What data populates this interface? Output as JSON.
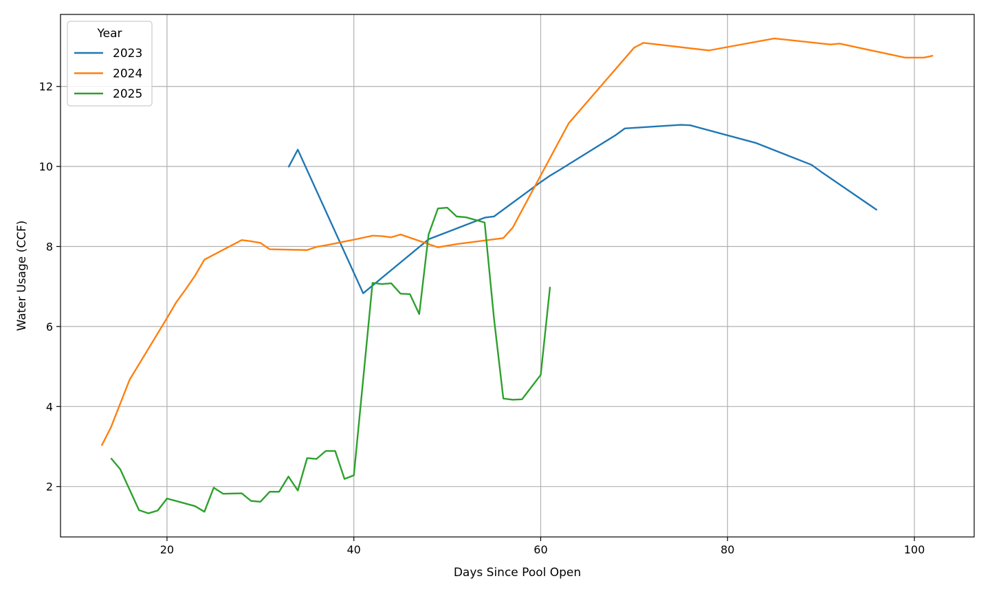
{
  "chart_data": {
    "type": "line",
    "xlabel": "Days Since Pool Open",
    "ylabel": "Water Usage (CCF)",
    "xlim": [
      8.6,
      106.4
    ],
    "ylim": [
      0.74,
      13.8
    ],
    "xticks": [
      20,
      40,
      60,
      80,
      100
    ],
    "yticks": [
      2,
      4,
      6,
      8,
      10,
      12
    ],
    "grid": true,
    "legend": {
      "title": "Year",
      "placement": "top-left"
    },
    "colors": {
      "2023": "#1f77b4",
      "2024": "#ff7f0e",
      "2025": "#2ca02c"
    },
    "series": [
      {
        "name": "2023",
        "x": [
          33,
          34,
          41,
          48,
          54,
          55,
          60,
          61,
          62,
          68,
          69,
          75,
          76,
          83,
          89,
          90,
          96
        ],
        "y": [
          9.98,
          10.42,
          6.83,
          8.18,
          8.72,
          8.75,
          9.61,
          9.77,
          9.91,
          10.78,
          10.95,
          11.04,
          11.03,
          10.59,
          10.04,
          9.87,
          8.91
        ]
      },
      {
        "name": "2024",
        "x": [
          13,
          14,
          16,
          20,
          21,
          22,
          23,
          24,
          28,
          29,
          30,
          31,
          35,
          36,
          37,
          40,
          42,
          43,
          44,
          45,
          49,
          51,
          56,
          57,
          63,
          70,
          71,
          78,
          85,
          91,
          92,
          99,
          101,
          102
        ],
        "y": [
          3.02,
          3.48,
          4.67,
          6.21,
          6.61,
          6.93,
          7.27,
          7.67,
          8.16,
          8.13,
          8.09,
          7.93,
          7.91,
          7.99,
          8.03,
          8.17,
          8.27,
          8.26,
          8.23,
          8.3,
          7.98,
          8.06,
          8.21,
          8.47,
          11.08,
          12.97,
          13.09,
          12.9,
          13.2,
          13.05,
          13.07,
          12.72,
          12.72,
          12.77
        ]
      },
      {
        "name": "2025",
        "x": [
          14,
          15,
          17,
          18,
          19,
          20,
          23,
          24,
          25,
          26,
          28,
          29,
          30,
          31,
          32,
          33,
          34,
          35,
          36,
          37,
          38,
          39,
          40,
          42,
          43,
          44,
          45,
          46,
          47,
          48,
          49,
          50,
          51,
          52,
          54,
          55,
          56,
          57,
          58,
          60,
          61
        ],
        "y": [
          2.71,
          2.43,
          1.41,
          1.33,
          1.4,
          1.7,
          1.51,
          1.37,
          1.97,
          1.82,
          1.83,
          1.64,
          1.62,
          1.87,
          1.87,
          2.25,
          1.9,
          2.71,
          2.69,
          2.89,
          2.89,
          2.19,
          2.28,
          7.09,
          7.06,
          7.08,
          6.82,
          6.81,
          6.31,
          8.3,
          8.95,
          8.97,
          8.75,
          8.73,
          8.6,
          6.2,
          4.2,
          4.17,
          4.18,
          4.79,
          6.99
        ]
      }
    ]
  }
}
